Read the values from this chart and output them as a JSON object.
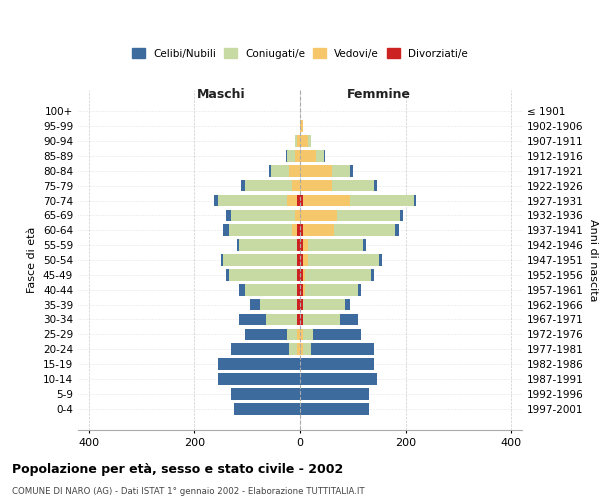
{
  "age_groups": [
    "0-4",
    "5-9",
    "10-14",
    "15-19",
    "20-24",
    "25-29",
    "30-34",
    "35-39",
    "40-44",
    "45-49",
    "50-54",
    "55-59",
    "60-64",
    "65-69",
    "70-74",
    "75-79",
    "80-84",
    "85-89",
    "90-94",
    "95-99",
    "100+"
  ],
  "birth_years": [
    "1997-2001",
    "1992-1996",
    "1987-1991",
    "1982-1986",
    "1977-1981",
    "1972-1976",
    "1967-1971",
    "1962-1966",
    "1957-1961",
    "1952-1956",
    "1947-1951",
    "1942-1946",
    "1937-1941",
    "1932-1936",
    "1927-1931",
    "1922-1926",
    "1917-1921",
    "1912-1916",
    "1907-1911",
    "1902-1906",
    "≤ 1901"
  ],
  "male": {
    "celibi": [
      125,
      130,
      155,
      155,
      110,
      80,
      50,
      20,
      10,
      5,
      5,
      5,
      10,
      10,
      8,
      6,
      3,
      2,
      0,
      0,
      0
    ],
    "coniugati": [
      0,
      0,
      0,
      0,
      15,
      20,
      60,
      70,
      100,
      130,
      140,
      110,
      120,
      120,
      130,
      90,
      35,
      15,
      5,
      0,
      0
    ],
    "vedovi": [
      0,
      0,
      0,
      0,
      5,
      5,
      0,
      0,
      0,
      0,
      0,
      0,
      10,
      10,
      20,
      15,
      20,
      10,
      5,
      0,
      0
    ],
    "divorziati": [
      0,
      0,
      0,
      0,
      0,
      0,
      5,
      5,
      5,
      5,
      5,
      5,
      5,
      0,
      5,
      0,
      0,
      0,
      0,
      0,
      0
    ]
  },
  "female": {
    "nubili": [
      130,
      130,
      145,
      140,
      120,
      90,
      35,
      10,
      5,
      5,
      5,
      5,
      8,
      5,
      5,
      5,
      5,
      2,
      0,
      0,
      0
    ],
    "coniugate": [
      0,
      0,
      0,
      0,
      15,
      20,
      70,
      80,
      100,
      125,
      135,
      105,
      115,
      120,
      120,
      80,
      35,
      15,
      5,
      0,
      0
    ],
    "vedove": [
      0,
      0,
      0,
      0,
      5,
      5,
      0,
      0,
      5,
      5,
      10,
      10,
      60,
      70,
      90,
      60,
      60,
      30,
      15,
      5,
      0
    ],
    "divorziate": [
      0,
      0,
      0,
      0,
      0,
      0,
      5,
      5,
      5,
      5,
      5,
      5,
      5,
      0,
      5,
      0,
      0,
      0,
      0,
      0,
      0
    ]
  },
  "colors": {
    "celibi": "#3d6b9e",
    "coniugati": "#c8daa4",
    "vedovi": "#f5c76a",
    "divorziati": "#cc2222"
  },
  "xlim": [
    -420,
    420
  ],
  "xticks": [
    -400,
    -200,
    0,
    200,
    400
  ],
  "xticklabels": [
    "400",
    "200",
    "0",
    "200",
    "400"
  ],
  "title_main": "Popolazione per età, sesso e stato civile - 2002",
  "title_sub": "COMUNE DI NARO (AG) - Dati ISTAT 1° gennaio 2002 - Elaborazione TUTTITALIA.IT",
  "ylabel": "Fasce di età",
  "ylabel_right": "Anni di nascita",
  "label_maschi": "Maschi",
  "label_femmine": "Femmine",
  "legend_labels": [
    "Celibi/Nubili",
    "Coniugati/e",
    "Vedovi/e",
    "Divorziati/e"
  ],
  "bg_color": "#ffffff",
  "grid_color": "#cccccc"
}
